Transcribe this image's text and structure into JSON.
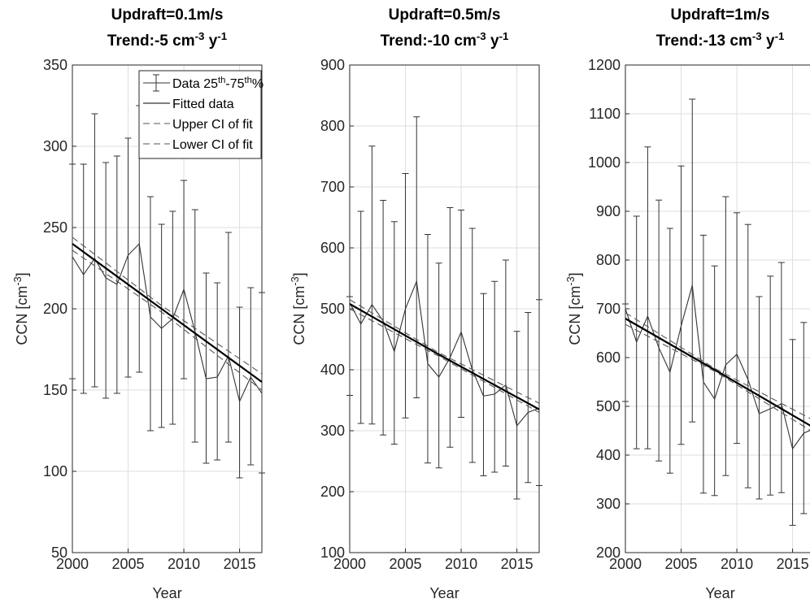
{
  "chart_data": [
    {
      "type": "errorbar-line",
      "title": "Updraft=0.1m/s",
      "subtitle": [
        "Trend:-5 cm",
        "-3",
        " y",
        "-1"
      ],
      "xlabel": "Year",
      "ylabel": [
        "CCN [cm",
        "-3",
        "]"
      ],
      "x": [
        2000,
        2001,
        2002,
        2003,
        2004,
        2005,
        2006,
        2007,
        2008,
        2009,
        2010,
        2011,
        2012,
        2013,
        2014,
        2015,
        2016,
        2017
      ],
      "xlim": [
        2000,
        2017
      ],
      "xticks": [
        2000,
        2005,
        2010,
        2015
      ],
      "ylim": [
        50,
        350
      ],
      "yticks": [
        50,
        100,
        150,
        200,
        250,
        300,
        350
      ],
      "grid": true,
      "legend": "top-right",
      "series": [
        {
          "name": [
            "Data 25",
            "th",
            "-75",
            "th",
            "%"
          ],
          "color": "#333333",
          "style": "errorbar",
          "values": [
            232,
            221,
            231,
            219,
            215,
            233,
            240,
            195,
            188,
            194,
            212,
            186,
            157,
            158,
            171,
            143,
            158,
            148
          ],
          "low": [
            157,
            148,
            152,
            145,
            148,
            158,
            161,
            125,
            127,
            129,
            157,
            118,
            105,
            107,
            118,
            96,
            104,
            99
          ],
          "high": [
            289,
            289,
            320,
            290,
            294,
            305,
            325,
            269,
            252,
            260,
            279,
            261,
            222,
            216,
            247,
            201,
            213,
            210
          ]
        },
        {
          "name": "Fitted data",
          "color": "#000000",
          "style": "solid",
          "x": [
            2000,
            2008,
            2017
          ],
          "values": [
            240,
            200,
            155
          ]
        },
        {
          "name": "Upper CI of fit",
          "color": "#555555",
          "style": "dashed",
          "x": [
            2000,
            2008,
            2017
          ],
          "values": [
            244,
            202,
            160
          ]
        },
        {
          "name": "Lower CI of fit",
          "color": "#555555",
          "style": "dashed",
          "x": [
            2000,
            2008,
            2017
          ],
          "values": [
            236,
            198,
            150
          ]
        }
      ]
    },
    {
      "type": "errorbar-line",
      "title": "Updraft=0.5m/s",
      "subtitle": [
        "Trend:-10 cm",
        "-3",
        " y",
        "-1"
      ],
      "xlabel": "Year",
      "ylabel": [
        "CCN [cm",
        "-3",
        "]"
      ],
      "x": [
        2000,
        2001,
        2002,
        2003,
        2004,
        2005,
        2006,
        2007,
        2008,
        2009,
        2010,
        2011,
        2012,
        2013,
        2014,
        2015,
        2016,
        2017
      ],
      "xlim": [
        2000,
        2017
      ],
      "xticks": [
        2000,
        2005,
        2010,
        2015
      ],
      "ylim": [
        100,
        900
      ],
      "yticks": [
        100,
        200,
        300,
        400,
        500,
        600,
        700,
        800,
        900
      ],
      "grid": true,
      "series": [
        {
          "color": "#333333",
          "style": "errorbar",
          "values": [
            510,
            475,
            507,
            480,
            430,
            500,
            545,
            410,
            388,
            420,
            462,
            400,
            357,
            360,
            375,
            308,
            330,
            337
          ],
          "low": [
            358,
            312,
            311,
            293,
            278,
            321,
            354,
            247,
            239,
            273,
            322,
            248,
            226,
            232,
            242,
            188,
            215,
            210
          ],
          "high": [
            520,
            660,
            767,
            678,
            643,
            722,
            815,
            622,
            575,
            666,
            662,
            632,
            525,
            545,
            580,
            463,
            494,
            515
          ]
        },
        {
          "color": "#000000",
          "style": "solid",
          "x": [
            2000,
            2008,
            2017
          ],
          "values": [
            508,
            425,
            335
          ]
        },
        {
          "color": "#555555",
          "style": "dashed",
          "x": [
            2000,
            2008,
            2017
          ],
          "values": [
            515,
            428,
            345
          ]
        },
        {
          "color": "#555555",
          "style": "dashed",
          "x": [
            2000,
            2008,
            2017
          ],
          "values": [
            500,
            422,
            330
          ]
        }
      ]
    },
    {
      "type": "errorbar-line",
      "title": "Updraft=1m/s",
      "subtitle": [
        "Trend:-13 cm",
        "-3",
        " y",
        "-1"
      ],
      "xlabel": "Year",
      "ylabel": [
        "CCN [cm",
        "-3",
        "]"
      ],
      "x": [
        2000,
        2001,
        2002,
        2003,
        2004,
        2005,
        2006,
        2007,
        2008,
        2009,
        2010,
        2011,
        2012,
        2013,
        2014,
        2015,
        2016,
        2017
      ],
      "xlim": [
        2000,
        2017
      ],
      "xticks": [
        2000,
        2005,
        2010,
        2015
      ],
      "ylim": [
        200,
        1200
      ],
      "yticks": [
        200,
        300,
        400,
        500,
        600,
        700,
        800,
        900,
        1000,
        1100,
        1200
      ],
      "grid": true,
      "series": [
        {
          "color": "#333333",
          "style": "errorbar",
          "values": [
            700,
            632,
            685,
            620,
            570,
            665,
            748,
            550,
            515,
            585,
            607,
            555,
            485,
            495,
            505,
            413,
            445,
            455
          ],
          "low": [
            510,
            413,
            413,
            388,
            363,
            422,
            468,
            322,
            317,
            358,
            424,
            333,
            310,
            318,
            323,
            256,
            280,
            280
          ],
          "high": [
            710,
            890,
            1032,
            923,
            865,
            993,
            1130,
            851,
            788,
            930,
            897,
            873,
            725,
            767,
            795,
            637,
            672,
            595
          ]
        },
        {
          "color": "#000000",
          "style": "solid",
          "x": [
            2000,
            2008,
            2017
          ],
          "values": [
            680,
            575,
            455
          ]
        },
        {
          "color": "#555555",
          "style": "dashed",
          "x": [
            2000,
            2008,
            2017
          ],
          "values": [
            692,
            578,
            470
          ]
        },
        {
          "color": "#555555",
          "style": "dashed",
          "x": [
            2000,
            2008,
            2017
          ],
          "values": [
            668,
            572,
            445
          ]
        }
      ]
    }
  ]
}
